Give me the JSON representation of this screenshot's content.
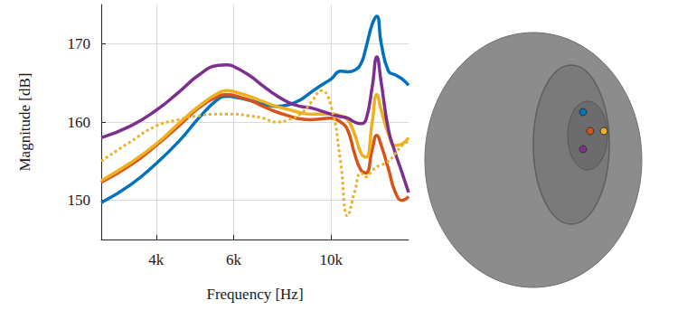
{
  "chart_data": {
    "type": "line",
    "xlabel": "Frequency [Hz]",
    "ylabel": "Magnitude [dB]",
    "log": "x",
    "grid": true,
    "x": [
      3000,
      3500,
      4000,
      4500,
      5000,
      5500,
      5800,
      6000,
      6500,
      7000,
      7500,
      8000,
      8500,
      9000,
      9500,
      10000,
      10500,
      10900,
      11300,
      11700,
      12000,
      12400,
      12700,
      13000,
      13500,
      14000,
      14500,
      15000
    ],
    "xlim": [
      3000,
      15000
    ],
    "xticks": [
      {
        "value": 4000,
        "label": "4k"
      },
      {
        "value": 6000,
        "label": "6k"
      },
      {
        "value": 10000,
        "label": "10k"
      }
    ],
    "ylim": [
      145,
      175
    ],
    "yticks": [
      150,
      160,
      170
    ],
    "series": [
      {
        "color": "#0072BD",
        "line_style": "solid",
        "values": [
          149.7,
          152,
          154.7,
          157.5,
          160.5,
          162.8,
          163.3,
          163.2,
          162.8,
          162.3,
          162,
          162.2,
          162.8,
          163.8,
          164.7,
          165.5,
          166.5,
          166.4,
          166.6,
          167.5,
          169.5,
          172.5,
          173.5,
          170,
          166.5,
          166,
          165.5,
          164.7
        ]
      },
      {
        "color": "#D95319",
        "line_style": "solid",
        "values": [
          152.3,
          154.5,
          157,
          159.5,
          161.8,
          163.2,
          163.5,
          163.4,
          162.8,
          162,
          161.3,
          160.8,
          160.4,
          160.3,
          160.4,
          160.5,
          160,
          159,
          156,
          153.8,
          153.5,
          156.5,
          158.3,
          157,
          154,
          151,
          150,
          150.5
        ]
      },
      {
        "color": "#EDB120",
        "line_style": "solid",
        "values": [
          152.5,
          154.8,
          157.2,
          159.8,
          162,
          163.6,
          164,
          163.9,
          163.3,
          162.6,
          162,
          161.6,
          161.2,
          161,
          161,
          161,
          160.8,
          160.3,
          158.5,
          156,
          155.5,
          160,
          163.5,
          161.5,
          158.5,
          157,
          157.2,
          158
        ]
      },
      {
        "color": "#7E2F8E",
        "line_style": "solid",
        "values": [
          158,
          159.5,
          161.5,
          163.8,
          166,
          167.2,
          167.3,
          167.1,
          166,
          164.6,
          163.4,
          162.5,
          162,
          161.8,
          161.4,
          161,
          160.7,
          160.5,
          160,
          159.8,
          160.3,
          164.5,
          168.3,
          165,
          159,
          156,
          153.5,
          151
        ]
      },
      {
        "color": "#EDB120",
        "line_style": "dotted",
        "values": [
          155,
          157.5,
          159.5,
          160.3,
          160.8,
          161,
          161,
          161,
          160.8,
          160.5,
          160,
          160.3,
          161,
          162.5,
          164,
          162,
          155,
          148,
          151,
          153.5,
          153,
          153.8,
          154.3,
          154.5,
          155,
          156,
          157,
          157.5
        ]
      }
    ]
  }
}
